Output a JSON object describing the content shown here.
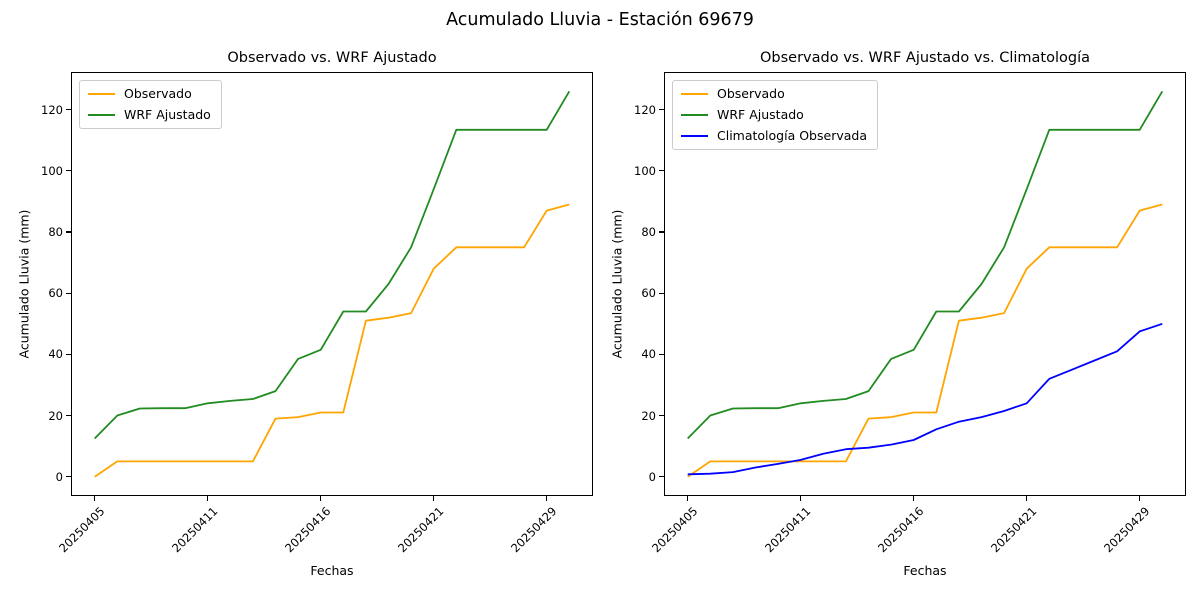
{
  "figure": {
    "suptitle": "Acumulado Lluvia - Estación 69679",
    "background": "#ffffff"
  },
  "chart_data": [
    {
      "type": "line",
      "title": "Observado vs. WRF Ajustado",
      "xlabel": "Fechas",
      "ylabel": "Acumulado Lluvia (mm)",
      "x": [
        0,
        1,
        2,
        3,
        4,
        5,
        6,
        7,
        8,
        9,
        10,
        11,
        12,
        13,
        14,
        15,
        16,
        17,
        18,
        19,
        20,
        21
      ],
      "xtick_positions": [
        0,
        5,
        10,
        15,
        20
      ],
      "xtick_labels": [
        "20250405",
        "20250411",
        "20250416",
        "20250421",
        "20250429"
      ],
      "xtick_rotation_deg": 45,
      "yticks": [
        0,
        20,
        40,
        60,
        80,
        100,
        120
      ],
      "xlim": [
        -1.05,
        22.05
      ],
      "ylim": [
        -6.3,
        132.3
      ],
      "grid": false,
      "legend_position": "upper-left",
      "series": [
        {
          "name": "Observado",
          "color": "#FFA500",
          "values": [
            0,
            5,
            5,
            5,
            5,
            5,
            5,
            5,
            19,
            19.5,
            21,
            21,
            51,
            52,
            53.5,
            68,
            75,
            75,
            75,
            75,
            87,
            89
          ]
        },
        {
          "name": "WRF Ajustado",
          "color": "#228B22",
          "values": [
            12.5,
            20,
            22.3,
            22.4,
            22.4,
            24,
            24.8,
            25.4,
            28,
            38.5,
            41.5,
            54,
            54,
            63,
            75,
            94,
            113.4,
            113.4,
            113.4,
            113.4,
            113.4,
            126
          ]
        }
      ]
    },
    {
      "type": "line",
      "title": "Observado vs. WRF Ajustado vs. Climatología",
      "xlabel": "Fechas",
      "ylabel": "Acumulado Lluvia (mm)",
      "x": [
        0,
        1,
        2,
        3,
        4,
        5,
        6,
        7,
        8,
        9,
        10,
        11,
        12,
        13,
        14,
        15,
        16,
        17,
        18,
        19,
        20,
        21
      ],
      "xtick_positions": [
        0,
        5,
        10,
        15,
        20
      ],
      "xtick_labels": [
        "20250405",
        "20250411",
        "20250416",
        "20250421",
        "20250429"
      ],
      "xtick_rotation_deg": 45,
      "yticks": [
        0,
        20,
        40,
        60,
        80,
        100,
        120
      ],
      "xlim": [
        -1.05,
        22.05
      ],
      "ylim": [
        -6.3,
        132.3
      ],
      "grid": false,
      "legend_position": "upper-left",
      "series": [
        {
          "name": "Observado",
          "color": "#FFA500",
          "values": [
            0,
            5,
            5,
            5,
            5,
            5,
            5,
            5,
            19,
            19.5,
            21,
            21,
            51,
            52,
            53.5,
            68,
            75,
            75,
            75,
            75,
            87,
            89
          ]
        },
        {
          "name": "WRF Ajustado",
          "color": "#228B22",
          "values": [
            12.5,
            20,
            22.3,
            22.4,
            22.4,
            24,
            24.8,
            25.4,
            28,
            38.5,
            41.5,
            54,
            54,
            63,
            75,
            94,
            113.4,
            113.4,
            113.4,
            113.4,
            113.4,
            126
          ]
        },
        {
          "name": "Climatología Observada",
          "color": "#0000FF",
          "values": [
            0.8,
            1,
            1.5,
            3,
            4.2,
            5.5,
            7.5,
            9,
            9.5,
            10.5,
            12,
            15.5,
            18,
            19.5,
            21.5,
            24,
            32,
            35,
            38,
            41,
            47.5,
            50
          ]
        }
      ]
    }
  ]
}
